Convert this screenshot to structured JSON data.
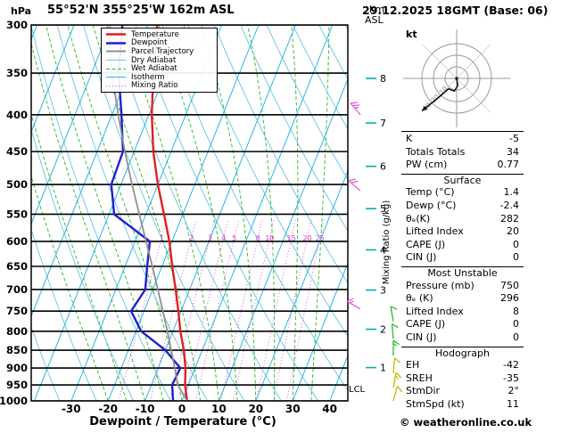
{
  "header": {
    "pressure_unit": "hPa",
    "station": "55°52'N 355°25'W 162m ASL",
    "datetime": "29.12.2025 18GMT (Base: 06)",
    "km_label": "km",
    "asl_label": "ASL"
  },
  "axes": {
    "pressure_ticks": [
      300,
      350,
      400,
      450,
      500,
      550,
      600,
      650,
      700,
      750,
      800,
      850,
      900,
      950,
      1000
    ],
    "temp_ticks": [
      -30,
      -20,
      -10,
      0,
      10,
      20,
      30,
      40
    ],
    "xlabel": "Dewpoint / Temperature (°C)",
    "km_ticks": [
      1,
      2,
      3,
      4,
      5,
      6,
      7,
      8
    ],
    "mixing_ratio_values": [
      1,
      2,
      3,
      4,
      5,
      8,
      10,
      15,
      20,
      25
    ],
    "mixing_ratio_axis_label": "Mixing Ratio (g/kg)",
    "lcl_label": "LCL"
  },
  "legend": {
    "items": [
      {
        "label": "Temperature",
        "color": "#e02020",
        "width": 2.4,
        "dash": ""
      },
      {
        "label": "Dewpoint",
        "color": "#2020d0",
        "width": 2.4,
        "dash": ""
      },
      {
        "label": "Parcel Trajectory",
        "color": "#909090",
        "width": 2,
        "dash": ""
      },
      {
        "label": "Dry Adiabat",
        "color": "#66c6e0",
        "width": 1,
        "dash": ""
      },
      {
        "label": "Wet Adiabat",
        "color": "#2db82d",
        "width": 1,
        "dash": "4,2.5"
      },
      {
        "label": "Isotherm",
        "color": "#29b6e8",
        "width": 1,
        "dash": ""
      },
      {
        "label": "Mixing Ratio",
        "color": "#dd44cc",
        "width": 1,
        "dash": "1,2.5"
      }
    ]
  },
  "chart_data": {
    "type": "line",
    "title": "Skew-T log-P sounding 55°52'N 355°25'W 162m ASL",
    "xlabel": "Dewpoint / Temperature (°C)",
    "ylabel": "Pressure (hPa)",
    "x_range": [
      -40,
      45
    ],
    "pressure_range": [
      300,
      1000
    ],
    "y_scale": "log-pressure",
    "legend_position": "top-left",
    "pressure_levels": [
      1000,
      950,
      900,
      850,
      800,
      750,
      700,
      650,
      600,
      550,
      500,
      450,
      400,
      350,
      300
    ],
    "series": [
      {
        "name": "Temperature",
        "color": "#e02020",
        "values": [
          1.4,
          -0.9,
          -2.6,
          -5.0,
          -8.0,
          -10.7,
          -13.8,
          -17.2,
          -20.7,
          -25.1,
          -30.0,
          -34.8,
          -39.2,
          -43.3,
          -47.5
        ]
      },
      {
        "name": "Dewpoint",
        "color": "#2020d0",
        "values": [
          -2.4,
          -4.4,
          -4.0,
          -10.0,
          -18.6,
          -23.5,
          -22.0,
          -24.0,
          -26.0,
          -38.6,
          -42.6,
          -43.0,
          -47.4,
          -52.7,
          -56.9
        ]
      },
      {
        "name": "Parcel Trajectory",
        "color": "#909090",
        "values": [
          1.4,
          -2.9,
          -5.5,
          -8.4,
          -11.5,
          -14.9,
          -18.6,
          -22.6,
          -27.0,
          -31.8,
          -37.0,
          -42.5,
          -48.3,
          -54.5,
          -61.0
        ]
      }
    ],
    "grid_families": {
      "isotherm_step_c": 10,
      "dry_adiabat_step_k": 10,
      "wet_adiabat_step_c": 5,
      "mixing_ratio_lines_gkg": [
        1,
        2,
        3,
        4,
        5,
        8,
        10,
        15,
        20,
        25
      ]
    }
  },
  "wind_barbs": [
    {
      "pressure": 400,
      "speed_kt": 25,
      "dir_deg": 320,
      "color": "#e060d0",
      "column": 0
    },
    {
      "pressure": 510,
      "speed_kt": 20,
      "dir_deg": 310,
      "color": "#e060d0",
      "column": 0
    },
    {
      "pressure": 745,
      "speed_kt": 15,
      "dir_deg": 300,
      "color": "#e060d0",
      "column": 0
    },
    {
      "pressure": 775,
      "speed_kt": 10,
      "dir_deg": 350,
      "color": "#2eb82e",
      "column": 1
    },
    {
      "pressure": 820,
      "speed_kt": 10,
      "dir_deg": 355,
      "color": "#2eb82e",
      "column": 1
    },
    {
      "pressure": 865,
      "speed_kt": 15,
      "dir_deg": 0,
      "color": "#2eb82e",
      "column": 1
    },
    {
      "pressure": 915,
      "speed_kt": 10,
      "dir_deg": 5,
      "color": "#c8b400",
      "column": 1
    },
    {
      "pressure": 958,
      "speed_kt": 15,
      "dir_deg": 10,
      "color": "#c8b400",
      "column": 1
    },
    {
      "pressure": 1000,
      "speed_kt": 10,
      "dir_deg": 15,
      "color": "#c8b400",
      "column": 1
    }
  ],
  "hodograph": {
    "unit_label": "kt",
    "ring_labels": [
      "10",
      "20",
      "30"
    ],
    "rings_kt": [
      10,
      20,
      30
    ],
    "trace_uv_kt": [
      [
        0,
        0
      ],
      [
        1,
        -6
      ],
      [
        -2,
        -11
      ],
      [
        -7,
        -9
      ],
      [
        -15,
        -16
      ],
      [
        -30,
        -28
      ]
    ]
  },
  "stats": {
    "sections": [
      {
        "header": "",
        "rows": [
          [
            "K",
            "-5"
          ],
          [
            "Totals Totals",
            "34"
          ],
          [
            "PW (cm)",
            "0.77"
          ]
        ]
      },
      {
        "header": "Surface",
        "rows": [
          [
            "Temp (°C)",
            "1.4"
          ],
          [
            "Dewp (°C)",
            "-2.4"
          ],
          [
            "θₑ(K)",
            "282"
          ],
          [
            "Lifted Index",
            "20"
          ],
          [
            "CAPE (J)",
            "0"
          ],
          [
            "CIN (J)",
            "0"
          ]
        ]
      },
      {
        "header": "Most Unstable",
        "rows": [
          [
            "Pressure (mb)",
            "750"
          ],
          [
            "θₑ (K)",
            "296"
          ],
          [
            "Lifted Index",
            "8"
          ],
          [
            "CAPE (J)",
            "0"
          ],
          [
            "CIN (J)",
            "0"
          ]
        ]
      },
      {
        "header": "Hodograph",
        "rows": [
          [
            "EH",
            "-42"
          ],
          [
            "SREH",
            "-35"
          ],
          [
            "StmDir",
            "2°"
          ],
          [
            "StmSpd (kt)",
            "11"
          ]
        ]
      }
    ]
  },
  "footer": {
    "copyright": "© weatheronline.co.uk"
  }
}
